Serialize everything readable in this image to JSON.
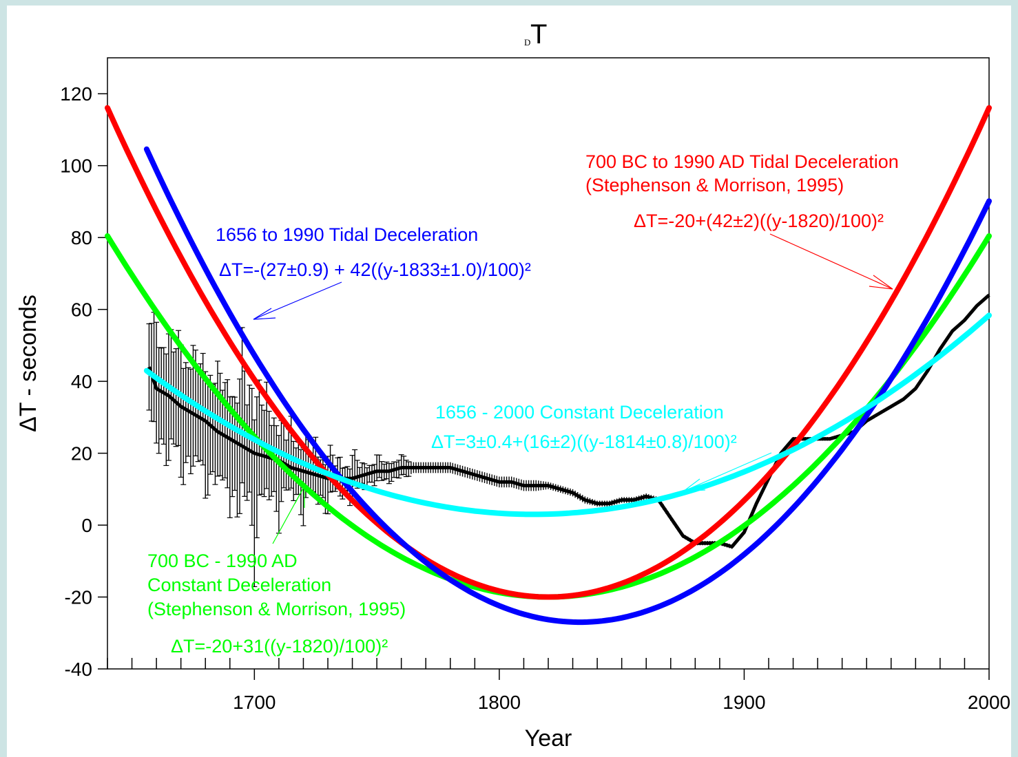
{
  "chart_data": {
    "type": "line",
    "title": "T",
    "title_subscript": "D",
    "xlabel": "Year",
    "ylabel": "ΔT - seconds",
    "xlim": [
      1640,
      2000
    ],
    "ylim": [
      -40,
      130
    ],
    "x_ticks": [
      1700,
      1800,
      1900,
      2000
    ],
    "y_ticks": [
      -40,
      -20,
      0,
      20,
      40,
      60,
      80,
      100,
      120
    ],
    "grid": false,
    "series": [
      {
        "color": "#ff0000",
        "formula": {
          "a": -20,
          "b": 42,
          "c": 1820
        },
        "x_range": [
          1640,
          2000
        ],
        "label_lines": [
          "700 BC to 1990 AD Tidal Deceleration",
          "(Stephenson & Morrison, 1995)"
        ],
        "equation": "ΔT=-20+(42±2)((y-1820)/100)²"
      },
      {
        "color": "#0000ff",
        "formula": {
          "a": -27,
          "b": 42,
          "c": 1833
        },
        "x_range": [
          1656,
          2000
        ],
        "label_lines": [
          "1656 to 1990 Tidal Deceleration"
        ],
        "equation": "ΔT=-(27±0.9) + 42((y-1833±1.0)/100)²"
      },
      {
        "color": "#00ff00",
        "formula": {
          "a": -20,
          "b": 31,
          "c": 1820
        },
        "x_range": [
          1640,
          2000
        ],
        "label_lines": [
          "700 BC - 1990 AD",
          "Constant Deceleration",
          "(Stephenson & Morrison, 1995)"
        ],
        "equation": "ΔT=-20+31((y-1820)/100)²"
      },
      {
        "color": "#00ffff",
        "formula": {
          "a": 3,
          "b": 16,
          "c": 1814
        },
        "x_range": [
          1656,
          2000
        ],
        "label_lines": [
          "1656 - 2000 Constant Deceleration"
        ],
        "equation": "ΔT=3±0.4+(16±2)((y-1814±0.8)/100)²"
      },
      {
        "color": "#000000",
        "type": "observed",
        "x": [
          1657,
          1660,
          1665,
          1670,
          1675,
          1680,
          1685,
          1690,
          1695,
          1700,
          1705,
          1710,
          1715,
          1720,
          1725,
          1730,
          1735,
          1740,
          1745,
          1750,
          1755,
          1760,
          1765,
          1770,
          1775,
          1780,
          1785,
          1790,
          1795,
          1800,
          1805,
          1810,
          1815,
          1820,
          1825,
          1830,
          1835,
          1840,
          1845,
          1850,
          1855,
          1860,
          1865,
          1870,
          1875,
          1880,
          1885,
          1890,
          1895,
          1900,
          1905,
          1910,
          1915,
          1920,
          1925,
          1930,
          1935,
          1940,
          1945,
          1950,
          1955,
          1960,
          1965,
          1970,
          1975,
          1980,
          1985,
          1990,
          1995,
          2000
        ],
        "y": [
          44,
          38,
          36,
          33,
          31,
          29,
          26,
          24,
          22,
          20,
          19,
          18,
          16,
          15,
          14,
          13,
          13,
          13,
          14,
          15,
          15,
          16,
          16,
          16,
          16,
          16,
          15,
          14,
          13,
          12,
          12,
          11,
          11,
          11,
          10,
          9,
          7,
          6,
          6,
          7,
          7,
          8,
          7,
          2,
          -3,
          -5,
          -5,
          -5,
          -6,
          -2,
          6,
          13,
          20,
          24,
          24,
          24,
          24,
          25,
          26,
          29,
          31,
          33,
          35,
          38,
          43,
          49,
          54,
          57,
          61,
          64
        ],
        "err": [
          12,
          12,
          12,
          12,
          12,
          12,
          12,
          12,
          12,
          12,
          10,
          8,
          6,
          6,
          5,
          4,
          3,
          3,
          2,
          2,
          2,
          2,
          1.5,
          1.5,
          1.5,
          1.5,
          1.5,
          1.5,
          1.5,
          1.5,
          1.5,
          1.5,
          1.5,
          1,
          1,
          1,
          1,
          0.8,
          0.8,
          0.8,
          0.8,
          0.8,
          0.8,
          0.8,
          0.6,
          0.6,
          0.6,
          0.6,
          0.6,
          0.6,
          0.5,
          0.5,
          0.5,
          0.5,
          0.5,
          0.5,
          0.5,
          0.5,
          0.5,
          0.5,
          0.5,
          0.5,
          0.5,
          0.5,
          0.5,
          0.5,
          0.5,
          0.5,
          0.5,
          0.5
        ],
        "oscillation": [
          0,
          6,
          -7,
          8,
          -6,
          7,
          -5,
          6,
          -12,
          14,
          -6,
          7,
          -5,
          6,
          -4,
          5,
          -3,
          4,
          -2,
          2,
          -1,
          1,
          0,
          0,
          0,
          0,
          0,
          0,
          0,
          0,
          0,
          0,
          0,
          0,
          0,
          0,
          0,
          0,
          0,
          0,
          0,
          0,
          0,
          0,
          0,
          0,
          0,
          0,
          0,
          0,
          0,
          0,
          0,
          0,
          0,
          0,
          0,
          0,
          0,
          0,
          0,
          0,
          0,
          0,
          0,
          0,
          0,
          0,
          0,
          0
        ]
      }
    ]
  }
}
